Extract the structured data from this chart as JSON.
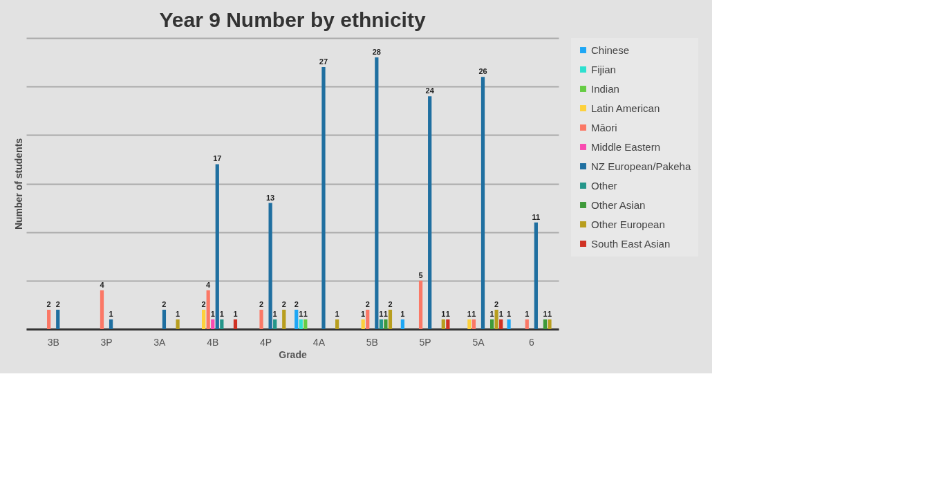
{
  "chart_data": {
    "type": "bar",
    "title": "Year 9 Number by ethnicity",
    "xlabel": "Grade",
    "ylabel": "Number of students",
    "categories": [
      "3B",
      "3P",
      "3A",
      "4B",
      "4P",
      "4A",
      "5B",
      "5P",
      "5A",
      "6"
    ],
    "series": [
      {
        "name": "Chinese",
        "color": "#1ea7f5",
        "values": [
          null,
          null,
          null,
          null,
          null,
          2,
          null,
          1,
          null,
          1
        ]
      },
      {
        "name": "Fijian",
        "color": "#2de0cf",
        "values": [
          null,
          null,
          null,
          null,
          null,
          1,
          null,
          null,
          null,
          null
        ]
      },
      {
        "name": "Indian",
        "color": "#66cc44",
        "values": [
          null,
          null,
          null,
          null,
          null,
          1,
          null,
          null,
          null,
          null
        ]
      },
      {
        "name": "Latin American",
        "color": "#fdd13c",
        "values": [
          null,
          null,
          null,
          2,
          null,
          null,
          1,
          null,
          1,
          null
        ]
      },
      {
        "name": "Māori",
        "color": "#fb7866",
        "values": [
          2,
          4,
          null,
          4,
          2,
          null,
          2,
          5,
          1,
          1
        ]
      },
      {
        "name": "Middle Eastern",
        "color": "#f94ab0",
        "values": [
          null,
          null,
          null,
          1,
          null,
          null,
          null,
          null,
          null,
          null
        ]
      },
      {
        "name": "NZ European/Pakeha",
        "color": "#1f6fa0",
        "values": [
          2,
          1,
          2,
          17,
          13,
          27,
          28,
          24,
          26,
          11
        ]
      },
      {
        "name": "Other",
        "color": "#24968a",
        "values": [
          null,
          null,
          null,
          1,
          1,
          null,
          1,
          null,
          null,
          null
        ]
      },
      {
        "name": "Other Asian",
        "color": "#3f9a3a",
        "values": [
          null,
          null,
          null,
          null,
          null,
          null,
          1,
          null,
          1,
          1
        ]
      },
      {
        "name": "Other European",
        "color": "#b89e1e",
        "values": [
          null,
          null,
          1,
          null,
          2,
          1,
          2,
          1,
          2,
          1
        ]
      },
      {
        "name": "South East Asian",
        "color": "#d03224",
        "values": [
          null,
          null,
          null,
          1,
          null,
          null,
          null,
          1,
          1,
          null
        ]
      }
    ],
    "ylim": [
      0,
      30
    ],
    "yticks": [
      {
        "value": 0,
        "label": null
      },
      {
        "value": 5,
        "label": null
      },
      {
        "value": 10,
        "label": null
      },
      {
        "value": 15,
        "label": null
      },
      {
        "value": 20,
        "label": null
      },
      {
        "value": 25,
        "label": null
      },
      {
        "value": 30,
        "label": null
      }
    ],
    "tick_labels": "x",
    "grid": "y",
    "legend": "right",
    "data_labels": true
  }
}
